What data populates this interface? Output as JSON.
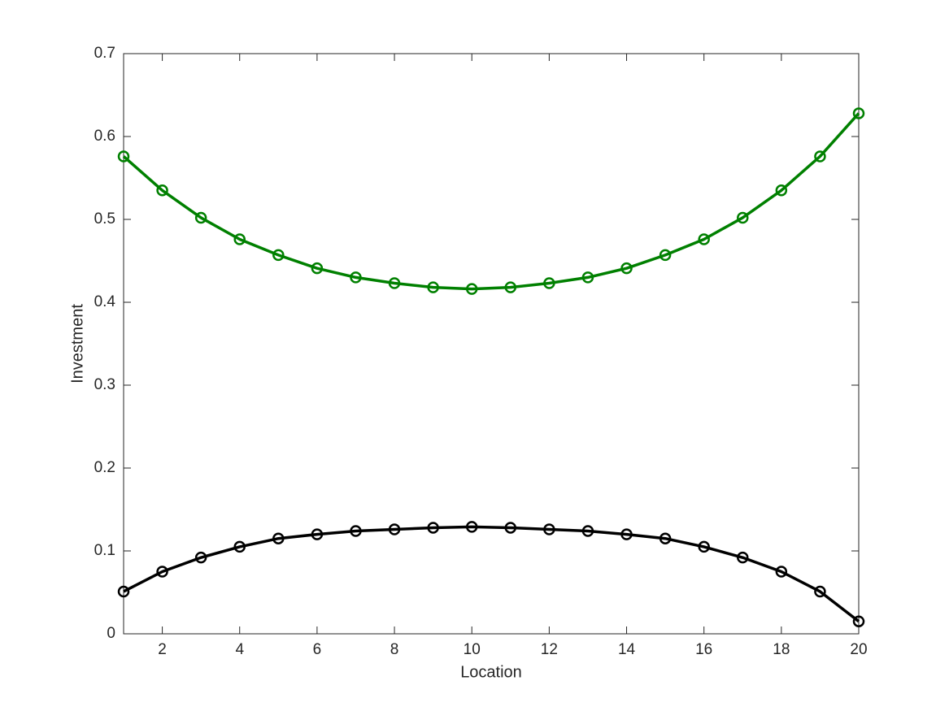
{
  "chart_data": {
    "type": "line",
    "x_label": "Location",
    "y_label": "Investment",
    "x": [
      1,
      2,
      3,
      4,
      5,
      6,
      7,
      8,
      9,
      10,
      11,
      12,
      13,
      14,
      15,
      16,
      17,
      18,
      19,
      20
    ],
    "series": [
      {
        "color": "#008000",
        "values": [
          0.576,
          0.535,
          0.502,
          0.476,
          0.457,
          0.441,
          0.43,
          0.423,
          0.418,
          0.416,
          0.418,
          0.423,
          0.43,
          0.441,
          0.457,
          0.476,
          0.502,
          0.535,
          0.576,
          0.628
        ]
      },
      {
        "color": "#000000",
        "values": [
          0.051,
          0.075,
          0.092,
          0.105,
          0.115,
          0.12,
          0.124,
          0.126,
          0.128,
          0.129,
          0.128,
          0.126,
          0.124,
          0.12,
          0.115,
          0.105,
          0.092,
          0.075,
          0.051,
          0.015
        ]
      }
    ],
    "xlim": [
      1,
      20
    ],
    "xticks": [
      2,
      4,
      6,
      8,
      10,
      12,
      14,
      16,
      18,
      20
    ],
    "ylim": [
      0,
      0.7
    ],
    "yticks": [
      0,
      0.1,
      0.2,
      0.3,
      0.4,
      0.5,
      0.6,
      0.7
    ],
    "grid": false,
    "markers": true
  }
}
